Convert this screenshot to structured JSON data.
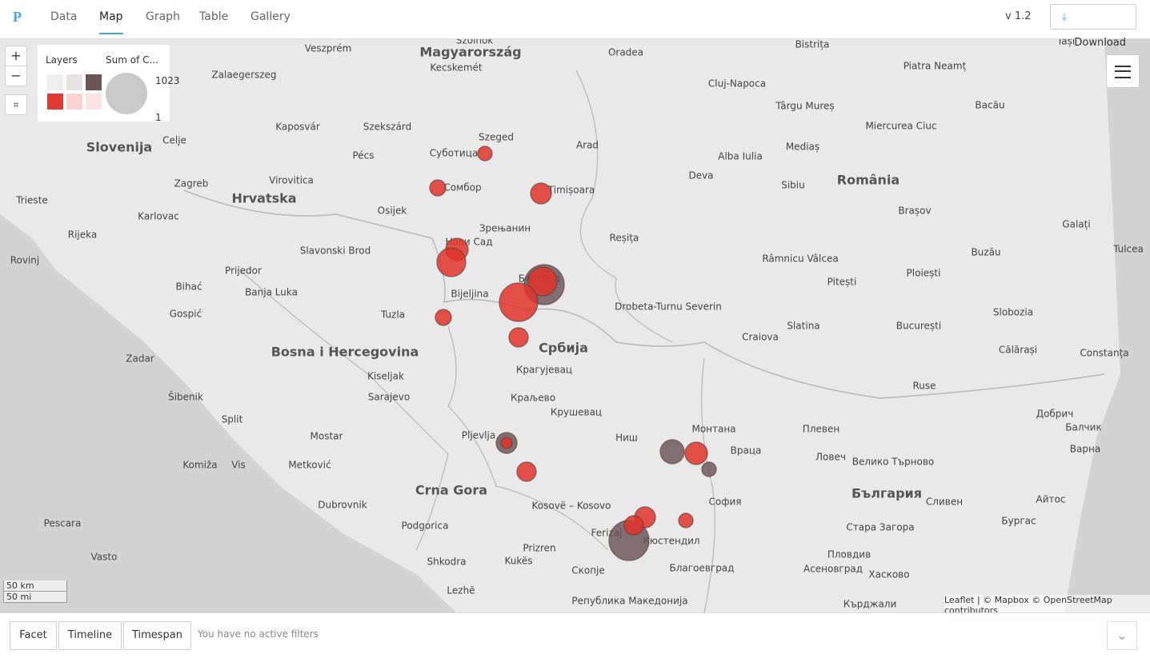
{
  "nav": {
    "logo": "P",
    "tabs": [
      "Data",
      "Map",
      "Graph",
      "Table",
      "Gallery"
    ],
    "version": "v 1.2",
    "download": "Download"
  },
  "map_controls": {
    "zoom_in": "+",
    "zoom_out": "−"
  },
  "legend": {
    "layers_title": "Layers",
    "size_title": "Sum of C...",
    "max": 1023,
    "min": 1
  },
  "map_labels": [
    "Magyarország",
    "Slovenija",
    "Hrvatska",
    "Bosna i Hercegovina",
    "Србија",
    "Crna Gora",
    "România",
    "България",
    "Szolnok",
    "Veszprém",
    "Kecskemét",
    "Oradea",
    "Cluj-Napoca",
    "Piatra Neamț",
    "Iași",
    "Bistrița",
    "Zalaegerszeg",
    "Kaposvár",
    "Szekszárd",
    "Pécs",
    "Szeged",
    "Суботица",
    "Arad",
    "Târgu Mureș",
    "Bacău",
    "Miercurea Ciuc",
    "Mediaș",
    "Alba Iulia",
    "Deva",
    "Sibiu",
    "Timișoara",
    "Сомбор",
    "Brașov",
    "Celje",
    "Zagreb",
    "Virovitica",
    "Osijek",
    "Karlovac",
    "Trieste",
    "Rijeka",
    "Rovinj",
    "Slavonski Brod",
    "Нови Сад",
    "Зрењанин",
    "Reșița",
    "Galați",
    "Prijedor",
    "Banja Luka",
    "Bihać",
    "Bijeljina",
    "Београд",
    "Râmnicu Vâlcea",
    "Pitești",
    "Ploiești",
    "Buzău",
    "Tulcea",
    "Drobeta-Turnu Severin",
    "Tuzla",
    "Gospić",
    "Slatina",
    "București",
    "Craiova",
    "Slobozia",
    "Călărași",
    "Constanța",
    "Zadar",
    "Крагујевац",
    "Kiseljak",
    "Sarajevo",
    "Šibenik",
    "Краљево",
    "Крушевац",
    "Split",
    "Ruse",
    "Добрич",
    "Балчик",
    "Mostar",
    "Pljevlja",
    "Ниш",
    "Монтана",
    "Плевен",
    "Враца",
    "Ловеч",
    "Велико Търново",
    "Варна",
    "Komiža",
    "Vis",
    "Metković",
    "Dubrovnik",
    "Kosovë – Kosovo",
    "София",
    "Сливен",
    "Pescara",
    "Podgorica",
    "Ferizaj",
    "Кюстендил",
    "Стара Загора",
    "Бургас",
    "Айтос",
    "Prizren",
    "Благоевград",
    "Пловдив",
    "Асеновград",
    "Хасково",
    "Vasto",
    "Shkodra",
    "Kukës",
    "Скопје",
    "Lezhë",
    "Кърджали",
    "Република Македонија"
  ],
  "scale": {
    "km": "50 km",
    "mi": "50 mi"
  },
  "attribution": "Leaflet | © Mapbox © OpenStreetMap contributors",
  "footer": {
    "buttons": [
      "Facet",
      "Timeline",
      "Timespan"
    ],
    "filter_note": "You have no active filters"
  }
}
